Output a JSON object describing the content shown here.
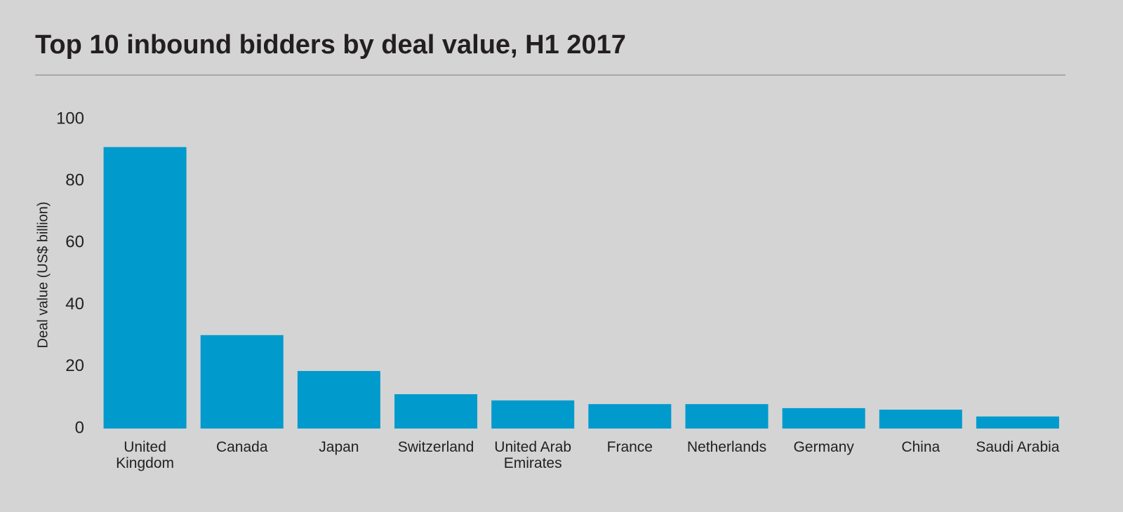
{
  "chart_data": {
    "type": "bar",
    "title": "Top 10 inbound bidders by deal value, H1 2017",
    "y_label": "Deal value (US$ billion)",
    "categories": [
      "United Kingdom",
      "Canada",
      "Japan",
      "Switzerland",
      "United Arab Emirates",
      "France",
      "Netherlands",
      "Germany",
      "China",
      "Saudi Arabia"
    ],
    "values": [
      91,
      30.2,
      18.6,
      11.1,
      9.1,
      7.9,
      7.9,
      6.6,
      6.1,
      3.9
    ],
    "color": "#009acd",
    "ylim": [
      0,
      100
    ],
    "yticks": [
      0,
      20,
      40,
      60,
      80,
      100
    ],
    "grid": false
  }
}
